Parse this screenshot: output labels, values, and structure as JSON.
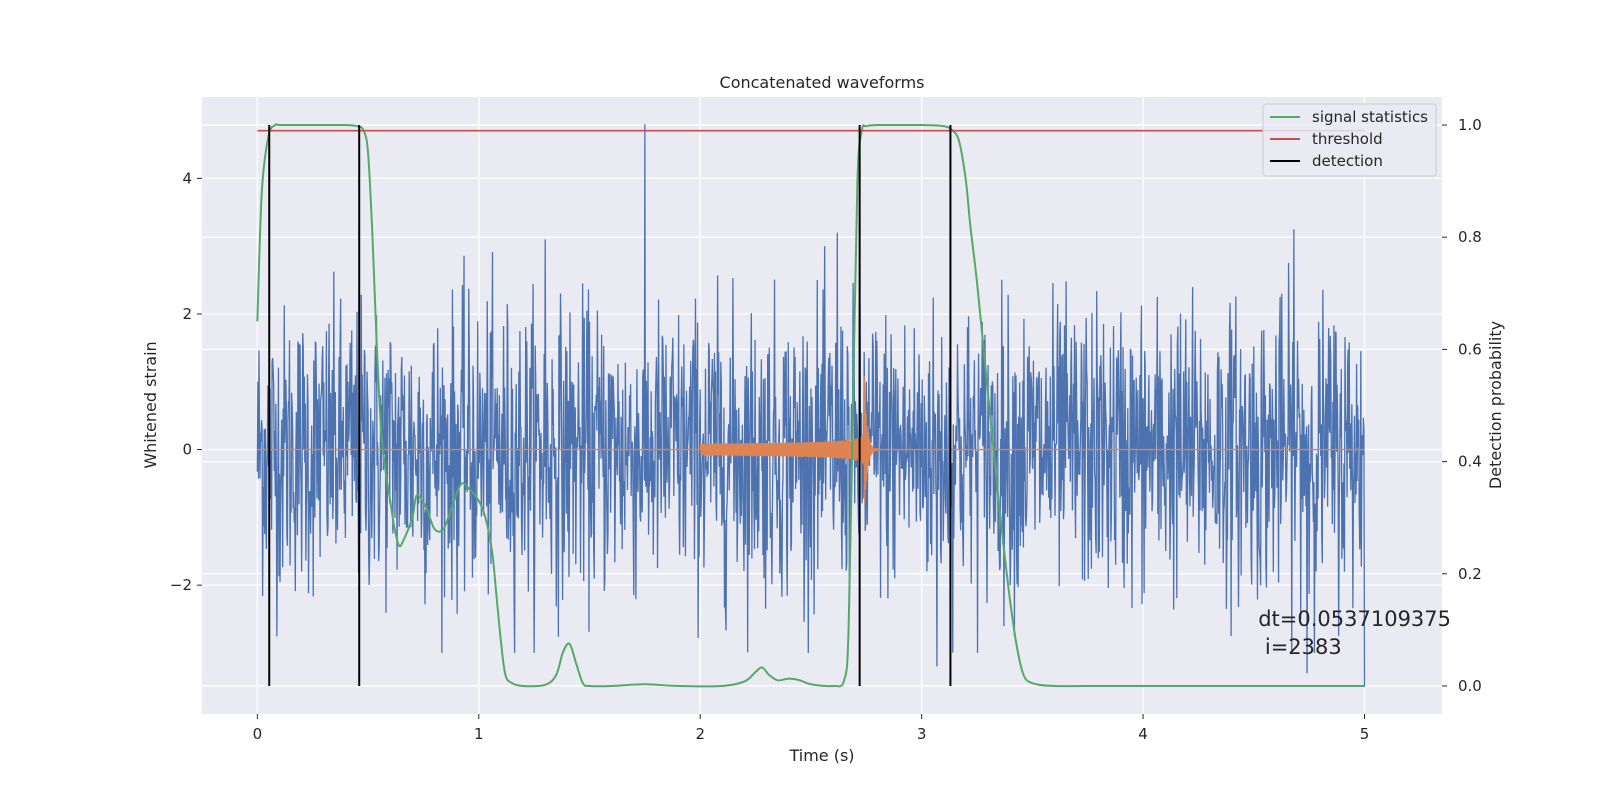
{
  "chart_data": {
    "type": "line",
    "title": "Concatenated waveforms",
    "xlabel": "Time (s)",
    "ylabel_left": "Whitened strain",
    "ylabel_right": "Detection probability",
    "xlim": [
      -0.25,
      5.35
    ],
    "ylim_left": [
      -3.9,
      5.2
    ],
    "ylim_right": [
      -0.05,
      1.05
    ],
    "xticks": [
      0,
      1,
      2,
      3,
      4,
      5
    ],
    "yticks_left": [
      -2,
      0,
      2,
      4
    ],
    "yticks_right": [
      0.0,
      0.2,
      0.4,
      0.6,
      0.8,
      1.0
    ],
    "xtick_labels": [
      "0",
      "1",
      "2",
      "3",
      "4",
      "5"
    ],
    "ytick_labels_left": [
      "−2",
      "0",
      "2",
      "4"
    ],
    "ytick_labels_right": [
      "0.0",
      "0.2",
      "0.4",
      "0.6",
      "0.8",
      "1.0"
    ],
    "grid": true,
    "legend_position": "top-right",
    "legend": [
      {
        "label": "signal statistics",
        "color": "#55a868"
      },
      {
        "label": "threshold",
        "color": "#c44e52"
      },
      {
        "label": "detection",
        "color": "#000000"
      }
    ],
    "annotation": {
      "line1": "dt=0.0537109375",
      "line2": " i=2383",
      "x": 4.52,
      "y": -2.6
    },
    "series": [
      {
        "name": "signal statistics",
        "axis": "right",
        "color": "#55a868",
        "x": [
          0.0,
          0.02,
          0.05,
          0.08,
          0.1,
          0.2,
          0.3,
          0.4,
          0.45,
          0.48,
          0.5,
          0.52,
          0.54,
          0.56,
          0.58,
          0.6,
          0.62,
          0.64,
          0.66,
          0.7,
          0.72,
          0.76,
          0.8,
          0.84,
          0.88,
          0.92,
          0.96,
          1.0,
          1.03,
          1.06,
          1.08,
          1.1,
          1.12,
          1.15,
          1.2,
          1.3,
          1.35,
          1.38,
          1.41,
          1.44,
          1.47,
          1.5,
          1.6,
          1.75,
          1.9,
          2.1,
          2.2,
          2.25,
          2.28,
          2.31,
          2.35,
          2.4,
          2.45,
          2.5,
          2.6,
          2.65,
          2.67,
          2.69,
          2.71,
          2.73,
          2.75,
          2.8,
          2.9,
          3.0,
          3.1,
          3.14,
          3.17,
          3.2,
          3.22,
          3.25,
          3.28,
          3.31,
          3.34,
          3.37,
          3.4,
          3.43,
          3.46,
          3.5,
          3.6,
          3.8,
          4.0,
          4.5,
          5.0
        ],
        "y": [
          0.65,
          0.88,
          0.98,
          1.0,
          1.0,
          1.0,
          1.0,
          1.0,
          0.998,
          0.99,
          0.95,
          0.8,
          0.6,
          0.45,
          0.38,
          0.33,
          0.28,
          0.25,
          0.26,
          0.3,
          0.34,
          0.32,
          0.28,
          0.28,
          0.32,
          0.36,
          0.35,
          0.33,
          0.3,
          0.24,
          0.16,
          0.08,
          0.02,
          0.005,
          0.0,
          0.002,
          0.02,
          0.06,
          0.075,
          0.04,
          0.005,
          0.0,
          0.0,
          0.003,
          0.0,
          0.0,
          0.008,
          0.025,
          0.033,
          0.02,
          0.01,
          0.013,
          0.01,
          0.003,
          0.0,
          0.01,
          0.1,
          0.5,
          0.9,
          0.99,
          0.998,
          1.0,
          1.0,
          1.0,
          0.998,
          0.99,
          0.97,
          0.9,
          0.82,
          0.72,
          0.6,
          0.48,
          0.36,
          0.25,
          0.15,
          0.07,
          0.02,
          0.005,
          0.0,
          0.0,
          0.0,
          0.0,
          0.0
        ]
      },
      {
        "name": "threshold",
        "axis": "right",
        "color": "#c44e52",
        "x": [
          0.0,
          5.0
        ],
        "y": [
          0.99,
          0.99
        ]
      },
      {
        "name": "detection",
        "axis": "right",
        "color": "#000000",
        "type": "vlines",
        "x": [
          0.0537109375,
          0.46,
          2.72,
          3.13
        ],
        "y_range": [
          0.0,
          1.0
        ]
      },
      {
        "name": "whitened strain",
        "axis": "left",
        "color": "#4c72b0",
        "style": "noise",
        "x_range": [
          0.0,
          5.0
        ],
        "samples": 2100,
        "amplitude": 1.05,
        "spikes": [
          {
            "x": 1.75,
            "y": 4.8
          },
          {
            "x": 1.3,
            "y": 3.1
          },
          {
            "x": 2.62,
            "y": 3.2
          },
          {
            "x": 4.68,
            "y": 3.25
          },
          {
            "x": 4.74,
            "y": -3.3
          },
          {
            "x": 5.0,
            "y": -3.5
          },
          {
            "x": 3.07,
            "y": -3.2
          }
        ]
      },
      {
        "name": "injected waveform",
        "axis": "left",
        "color": "#dd8452",
        "style": "chirp",
        "x_range": [
          0.0,
          5.0
        ],
        "chirp_start": 2.0,
        "merger": 2.74,
        "peak_amplitude": 1.2
      }
    ]
  }
}
